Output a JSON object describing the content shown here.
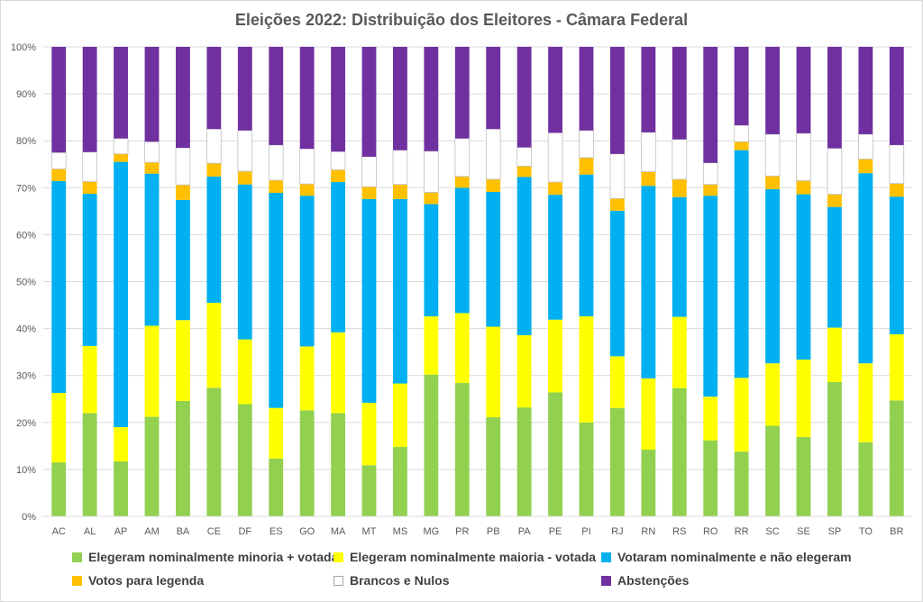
{
  "chart_data": {
    "type": "bar",
    "stacked": true,
    "percent": true,
    "title": "Eleições 2022: Distribuição dos Eleitores - Câmara Federal",
    "xlabel": "",
    "ylabel": "",
    "ylim": [
      0,
      100
    ],
    "yticks": [
      "0%",
      "10%",
      "20%",
      "30%",
      "40%",
      "50%",
      "60%",
      "70%",
      "80%",
      "90%",
      "100%"
    ],
    "grid": true,
    "legend_position": "bottom",
    "categories": [
      "AC",
      "AL",
      "AP",
      "AM",
      "BA",
      "CE",
      "DF",
      "ES",
      "GO",
      "MA",
      "MT",
      "MS",
      "MG",
      "PR",
      "PB",
      "PA",
      "PE",
      "PI",
      "RJ",
      "RN",
      "RS",
      "RO",
      "RR",
      "SC",
      "SE",
      "SP",
      "TO",
      "BR"
    ],
    "series": [
      {
        "name": "Elegeram nominalmente minoria + votada",
        "color": "#92d050",
        "values": [
          11.5,
          22,
          11.7,
          21.2,
          24.6,
          27.4,
          23.9,
          12.3,
          22.6,
          22,
          10.9,
          14.8,
          30.2,
          28.4,
          21.1,
          23.2,
          26.4,
          20,
          23.1,
          14.2,
          27.3,
          16.2,
          13.8,
          19.3,
          16.9,
          28.6,
          15.8,
          24.7
        ]
      },
      {
        "name": "Elegeram nominalmente maioria - votada",
        "color": "#ffff00",
        "values": [
          14.8,
          14.3,
          7.3,
          19.4,
          17.2,
          18.1,
          13.8,
          10.8,
          13.6,
          17.2,
          13.3,
          13.5,
          12.4,
          14.9,
          19.3,
          15.4,
          15.5,
          22.6,
          11,
          15.2,
          15.2,
          9.3,
          15.7,
          13.3,
          16.5,
          11.6,
          16.8,
          14.1
        ]
      },
      {
        "name": "Votaram nominalmente e não elegeram",
        "color": "#00b0f0",
        "values": [
          45.1,
          32.4,
          56.5,
          32.4,
          25.6,
          26.9,
          33,
          45.8,
          32.1,
          32,
          43.4,
          39.3,
          23.9,
          26.7,
          28.7,
          33.7,
          26.6,
          30.2,
          31,
          41,
          25.5,
          42.8,
          48.5,
          37.1,
          35.2,
          25.7,
          40.5,
          29.3
        ]
      },
      {
        "name": "Votos para legenda",
        "color": "#ffc000",
        "values": [
          2.6,
          2.6,
          1.7,
          2.4,
          3.2,
          2.8,
          2.8,
          2.7,
          2.5,
          2.6,
          2.6,
          3.1,
          2.5,
          2.4,
          2.7,
          2.3,
          2.7,
          3.6,
          2.6,
          3,
          3.8,
          2.4,
          1.8,
          2.8,
          2.9,
          2.7,
          3,
          2.8
        ]
      },
      {
        "name": "Brancos e Nulos",
        "color": "#ffffff",
        "values": [
          3.5,
          6.3,
          3.3,
          4.4,
          7.9,
          7.3,
          8.7,
          7.5,
          7.5,
          3.9,
          6.4,
          7.3,
          8.8,
          8.1,
          10.7,
          4,
          10.5,
          5.8,
          9.5,
          8.4,
          8.5,
          4.6,
          3.5,
          8.9,
          10.1,
          9.8,
          5.3,
          8.2
        ]
      },
      {
        "name": "Abstenções",
        "color": "#7030a0",
        "values": [
          22.5,
          22.4,
          19.5,
          20.2,
          21.5,
          17.5,
          17.8,
          20.9,
          21.7,
          22.3,
          23.4,
          22,
          22.2,
          19.5,
          17.5,
          21.4,
          18.3,
          17.8,
          22.8,
          18.2,
          19.7,
          24.7,
          16.7,
          18.6,
          18.4,
          21.6,
          18.6,
          20.9
        ]
      }
    ]
  }
}
